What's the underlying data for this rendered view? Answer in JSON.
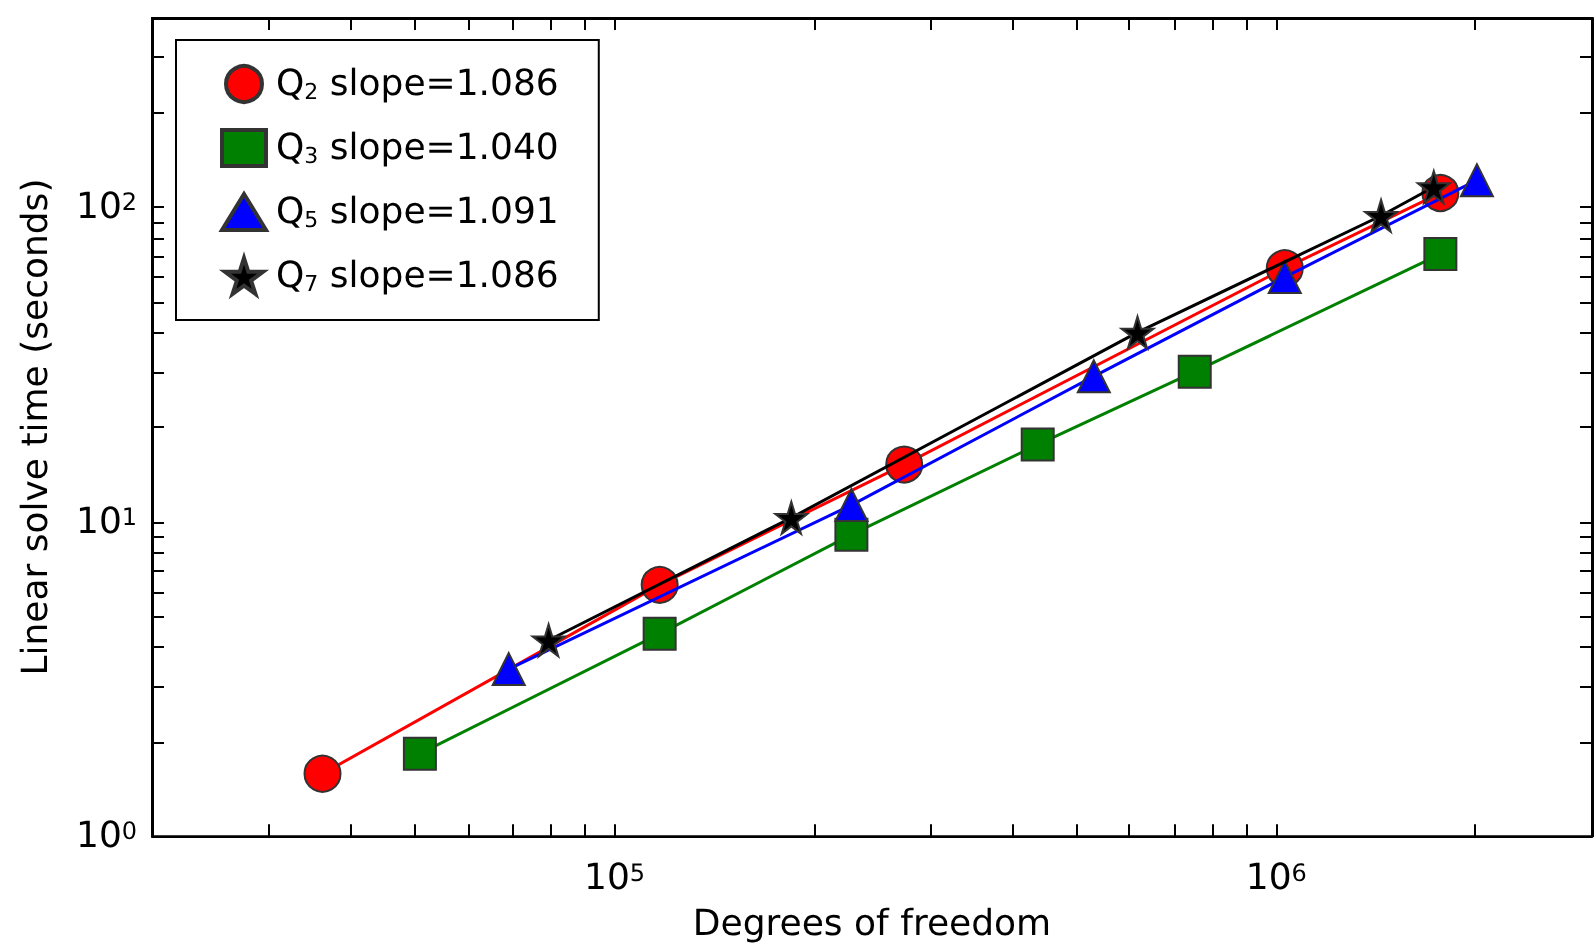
{
  "chart_data": {
    "type": "line",
    "xlabel": "Degrees of freedom",
    "ylabel": "Linear solve time (seconds)",
    "log": "xy",
    "grid": false,
    "legend": "top left",
    "xlim": [
      20000,
      3000000
    ],
    "ylim": [
      1,
      400
    ],
    "xticks": [
      {
        "value": 20000,
        "label": null
      },
      {
        "value": 30000,
        "label": null
      },
      {
        "value": 40000,
        "label": null
      },
      {
        "value": 50000,
        "label": null
      },
      {
        "value": 60000,
        "label": null
      },
      {
        "value": 70000,
        "label": null
      },
      {
        "value": 80000,
        "label": null
      },
      {
        "value": 90000,
        "label": null
      },
      {
        "value": 100000,
        "label": "10$^{5}$"
      },
      {
        "value": 200000,
        "label": null
      },
      {
        "value": 300000,
        "label": null
      },
      {
        "value": 400000,
        "label": null
      },
      {
        "value": 500000,
        "label": null
      },
      {
        "value": 600000,
        "label": null
      },
      {
        "value": 700000,
        "label": null
      },
      {
        "value": 800000,
        "label": null
      },
      {
        "value": 900000,
        "label": null
      },
      {
        "value": 1000000,
        "label": "10$^{6}$"
      },
      {
        "value": 2000000,
        "label": null
      },
      {
        "value": 3000000,
        "label": null
      }
    ],
    "yticks": [
      {
        "value": 1,
        "label": "10$^{0}$"
      },
      {
        "value": 2,
        "label": null
      },
      {
        "value": 3,
        "label": null
      },
      {
        "value": 4,
        "label": null
      },
      {
        "value": 5,
        "label": null
      },
      {
        "value": 6,
        "label": null
      },
      {
        "value": 7,
        "label": null
      },
      {
        "value": 8,
        "label": null
      },
      {
        "value": 9,
        "label": null
      },
      {
        "value": 10,
        "label": "10$^{1}$"
      },
      {
        "value": 20,
        "label": null
      },
      {
        "value": 30,
        "label": null
      },
      {
        "value": 40,
        "label": null
      },
      {
        "value": 50,
        "label": null
      },
      {
        "value": 60,
        "label": null
      },
      {
        "value": 70,
        "label": null
      },
      {
        "value": 80,
        "label": null
      },
      {
        "value": 90,
        "label": null
      },
      {
        "value": 100,
        "label": "10$^{2}$"
      },
      {
        "value": 200,
        "label": null
      },
      {
        "value": 300,
        "label": null
      },
      {
        "value": 400,
        "label": null
      }
    ],
    "series": [
      {
        "name": "Q$_{2}$ slope=1.086",
        "color": "#ff0000",
        "marker": "circle",
        "x": [
          36200,
          117000,
          274000,
          1030000,
          1770000
        ],
        "values": [
          1.58,
          6.3,
          15.2,
          64,
          111
        ]
      },
      {
        "name": "Q$_{3}$ slope=1.040",
        "color": "#008000",
        "marker": "square",
        "x": [
          50800,
          117000,
          228000,
          436000,
          753000,
          1770000
        ],
        "values": [
          1.83,
          4.4,
          9.1,
          17.6,
          30,
          71
        ]
      },
      {
        "name": "Q$_{5}$ slope=1.091",
        "color": "#0000ff",
        "marker": "triangle",
        "x": [
          69200,
          228000,
          530000,
          1030000,
          2010000
        ],
        "values": [
          3.4,
          11.3,
          29,
          60,
          122
        ]
      },
      {
        "name": "Q$_{7}$ slope=1.086",
        "color": "#000000",
        "marker": "star",
        "x": [
          79500,
          185000,
          617000,
          1440000,
          1730000
        ],
        "values": [
          4.2,
          10.3,
          40,
          94,
          116
        ]
      }
    ]
  }
}
